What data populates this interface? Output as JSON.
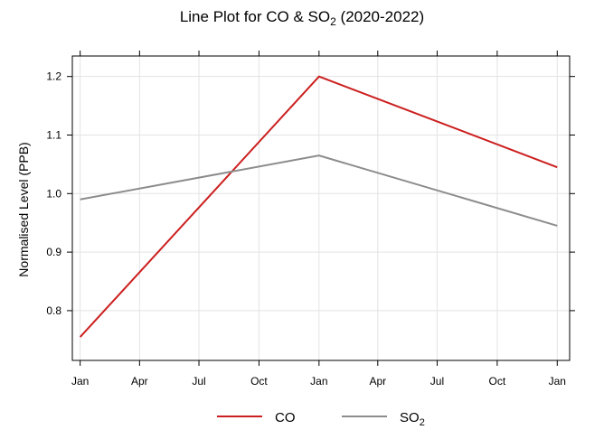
{
  "chart_data": {
    "type": "line",
    "title": "Line Plot for CO & SO",
    "title_sub": "2",
    "title_suffix": " (2020-2022)",
    "xlabel": "",
    "ylabel": "Normalised Level (PPB)",
    "x": [
      "2020-01",
      "2021-01",
      "2022-01"
    ],
    "x_ticks": [
      {
        "date": "2020-01",
        "label": "Jan"
      },
      {
        "date": "2020-04",
        "label": "Apr"
      },
      {
        "date": "2020-07",
        "label": "Jul"
      },
      {
        "date": "2020-10",
        "label": "Oct"
      },
      {
        "date": "2021-01",
        "label": "Jan"
      },
      {
        "date": "2021-04",
        "label": "Apr"
      },
      {
        "date": "2021-07",
        "label": "Jul"
      },
      {
        "date": "2021-10",
        "label": "Oct"
      },
      {
        "date": "2022-01",
        "label": "Jan"
      }
    ],
    "y_ticks": [
      0.8,
      0.9,
      1.0,
      1.1,
      1.2
    ],
    "y_tick_labels": [
      "0.8",
      "0.9",
      "1.0",
      "1.1",
      "1.2"
    ],
    "ylim": [
      0.715,
      1.235
    ],
    "xlim": [
      "2019-12-20",
      "2022-01-20"
    ],
    "grid": true,
    "legend_position": "bottom",
    "series": [
      {
        "name": "CO",
        "sub": "",
        "color": "#cc1f1f",
        "values": [
          0.755,
          1.2,
          1.045
        ]
      },
      {
        "name": "SO",
        "sub": "2",
        "color": "#8c8c8c",
        "values": [
          0.99,
          1.065,
          0.945
        ]
      }
    ]
  }
}
